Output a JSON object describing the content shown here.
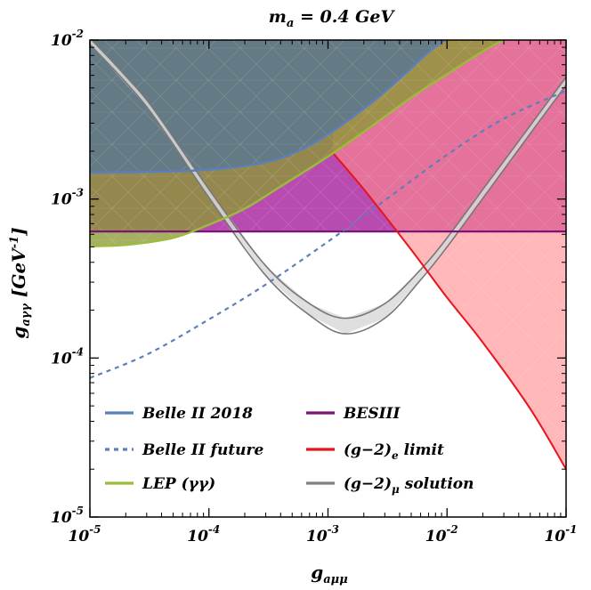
{
  "chart_data": {
    "type": "line",
    "title": "m_a = 0.4 GeV",
    "xlabel": "g_aμμ",
    "ylabel": "g_aγγ [GeV^-1]",
    "xscale": "log",
    "yscale": "log",
    "xlim": [
      1e-05,
      0.1
    ],
    "ylim": [
      1e-05,
      0.01
    ],
    "grid": false,
    "legend_position": "bottom-left",
    "x_ticks": [
      {
        "base": "10",
        "exp": "-5"
      },
      {
        "base": "10",
        "exp": "-4"
      },
      {
        "base": "10",
        "exp": "-3"
      },
      {
        "base": "10",
        "exp": "-2"
      },
      {
        "base": "10",
        "exp": "-1"
      }
    ],
    "y_ticks": [
      {
        "base": "10",
        "exp": "-5"
      },
      {
        "base": "10",
        "exp": "-4"
      },
      {
        "base": "10",
        "exp": "-3"
      },
      {
        "base": "10",
        "exp": "-2"
      }
    ],
    "series": [
      {
        "name": "Belle II 2018",
        "color": "#5b7fbd",
        "style": "solid",
        "excluded_region": "above",
        "points": [
          [
            1e-05,
            0.00147
          ],
          [
            3e-05,
            0.00148
          ],
          [
            0.0001,
            0.00153
          ],
          [
            0.0003,
            0.0017
          ],
          [
            0.0006,
            0.00205
          ],
          [
            0.001,
            0.00255
          ],
          [
            0.002,
            0.0037
          ],
          [
            0.004,
            0.0057
          ],
          [
            0.007,
            0.0084
          ],
          [
            0.01,
            0.0102
          ]
        ]
      },
      {
        "name": "Belle II future",
        "color": "#5b7fbd",
        "style": "dotted",
        "points": [
          [
            1e-05,
            7.5e-05
          ],
          [
            3e-05,
            0.000105
          ],
          [
            0.0001,
            0.000175
          ],
          [
            0.0003,
            0.00029
          ],
          [
            0.001,
            0.00054
          ],
          [
            0.003,
            0.00098
          ],
          [
            0.01,
            0.0019
          ],
          [
            0.03,
            0.0032
          ],
          [
            0.1,
            0.0048
          ]
        ]
      },
      {
        "name": "LEP (γγ)",
        "color": "#9bbb3a",
        "style": "solid",
        "excluded_region": "above",
        "points": [
          [
            1e-05,
            0.000505
          ],
          [
            2e-05,
            0.000515
          ],
          [
            5e-05,
            0.00057
          ],
          [
            0.0001,
            0.00069
          ],
          [
            0.0002,
            0.00087
          ],
          [
            0.0004,
            0.0012
          ],
          [
            0.001,
            0.00185
          ],
          [
            0.002,
            0.00265
          ],
          [
            0.005,
            0.00435
          ],
          [
            0.01,
            0.0061
          ],
          [
            0.02,
            0.0085
          ],
          [
            0.033,
            0.0104
          ]
        ]
      },
      {
        "name": "BESIII",
        "color": "#7b1378",
        "style": "solid",
        "excluded_region": "above",
        "points": [
          [
            1e-05,
            0.000625
          ],
          [
            0.1,
            0.000625
          ]
        ]
      },
      {
        "name": "(g−2)_e limit",
        "color": "#e8141d",
        "style": "solid",
        "excluded_region": "above",
        "points": [
          [
            0.0011,
            0.00195
          ],
          [
            0.002,
            0.00115
          ],
          [
            0.005,
            0.00048
          ],
          [
            0.01,
            0.00024
          ],
          [
            0.02,
            0.000125
          ],
          [
            0.05,
            4.8e-05
          ],
          [
            0.1,
            2e-05
          ]
        ]
      },
      {
        "name": "(g−2)_μ solution",
        "color": "#808080",
        "style": "band",
        "upper": [
          [
            1e-05,
            0.0103
          ],
          [
            3e-05,
            0.0042
          ],
          [
            0.0001,
            0.00115
          ],
          [
            0.0003,
            0.00038
          ],
          [
            0.0007,
            0.00022
          ],
          [
            0.0014,
            0.000178
          ],
          [
            0.003,
            0.00022
          ],
          [
            0.006,
            0.00036
          ],
          [
            0.01,
            0.00057
          ],
          [
            0.02,
            0.00115
          ],
          [
            0.05,
            0.0029
          ],
          [
            0.1,
            0.00585
          ]
        ],
        "lower": [
          [
            1e-05,
            0.0094
          ],
          [
            3e-05,
            0.0038
          ],
          [
            0.0001,
            0.00102
          ],
          [
            0.0003,
            0.00033
          ],
          [
            0.0007,
            0.000186
          ],
          [
            0.0014,
            0.000142
          ],
          [
            0.003,
            0.000178
          ],
          [
            0.006,
            0.00031
          ],
          [
            0.01,
            0.0005
          ],
          [
            0.02,
            0.00101
          ],
          [
            0.05,
            0.00258
          ],
          [
            0.1,
            0.0052
          ]
        ]
      }
    ]
  }
}
